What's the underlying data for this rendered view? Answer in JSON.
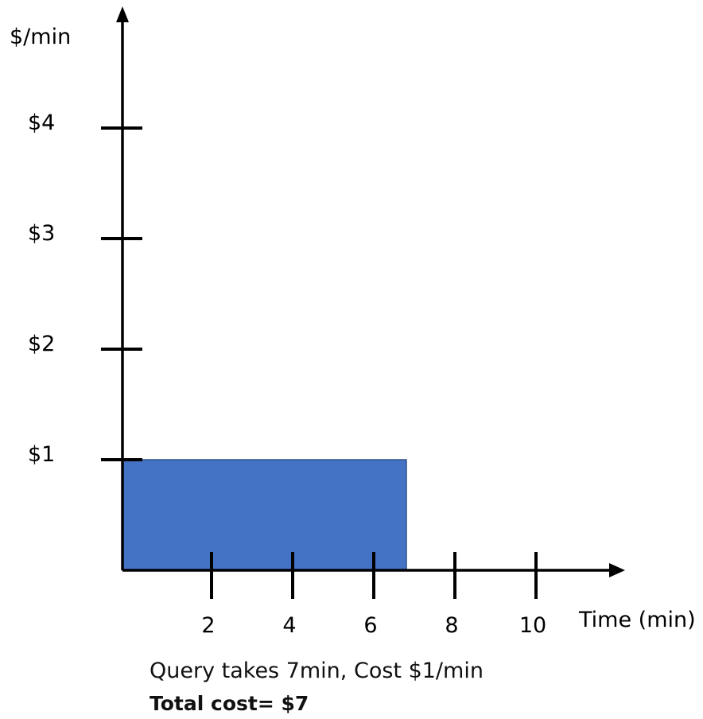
{
  "chart_data": {
    "type": "bar",
    "ylabel": "$/min",
    "xlabel": "Time (min)",
    "y_ticks": [
      {
        "value": 1,
        "label": "$1"
      },
      {
        "value": 2,
        "label": "$2"
      },
      {
        "value": 3,
        "label": "$3"
      },
      {
        "value": 4,
        "label": "$4"
      }
    ],
    "x_ticks": [
      {
        "value": 2,
        "label": "2"
      },
      {
        "value": 4,
        "label": "4"
      },
      {
        "value": 6,
        "label": "6"
      },
      {
        "value": 8,
        "label": "8"
      },
      {
        "value": 10,
        "label": "10"
      }
    ],
    "bars": [
      {
        "x_start": 0,
        "x_end": 7,
        "value": 1,
        "color": "#4472C4"
      }
    ],
    "xlim": [
      0,
      12
    ],
    "ylim": [
      0,
      5
    ],
    "grid": false
  },
  "caption": {
    "line": "Query takes 7min, Cost $1/min",
    "total": "Total cost= $7"
  }
}
